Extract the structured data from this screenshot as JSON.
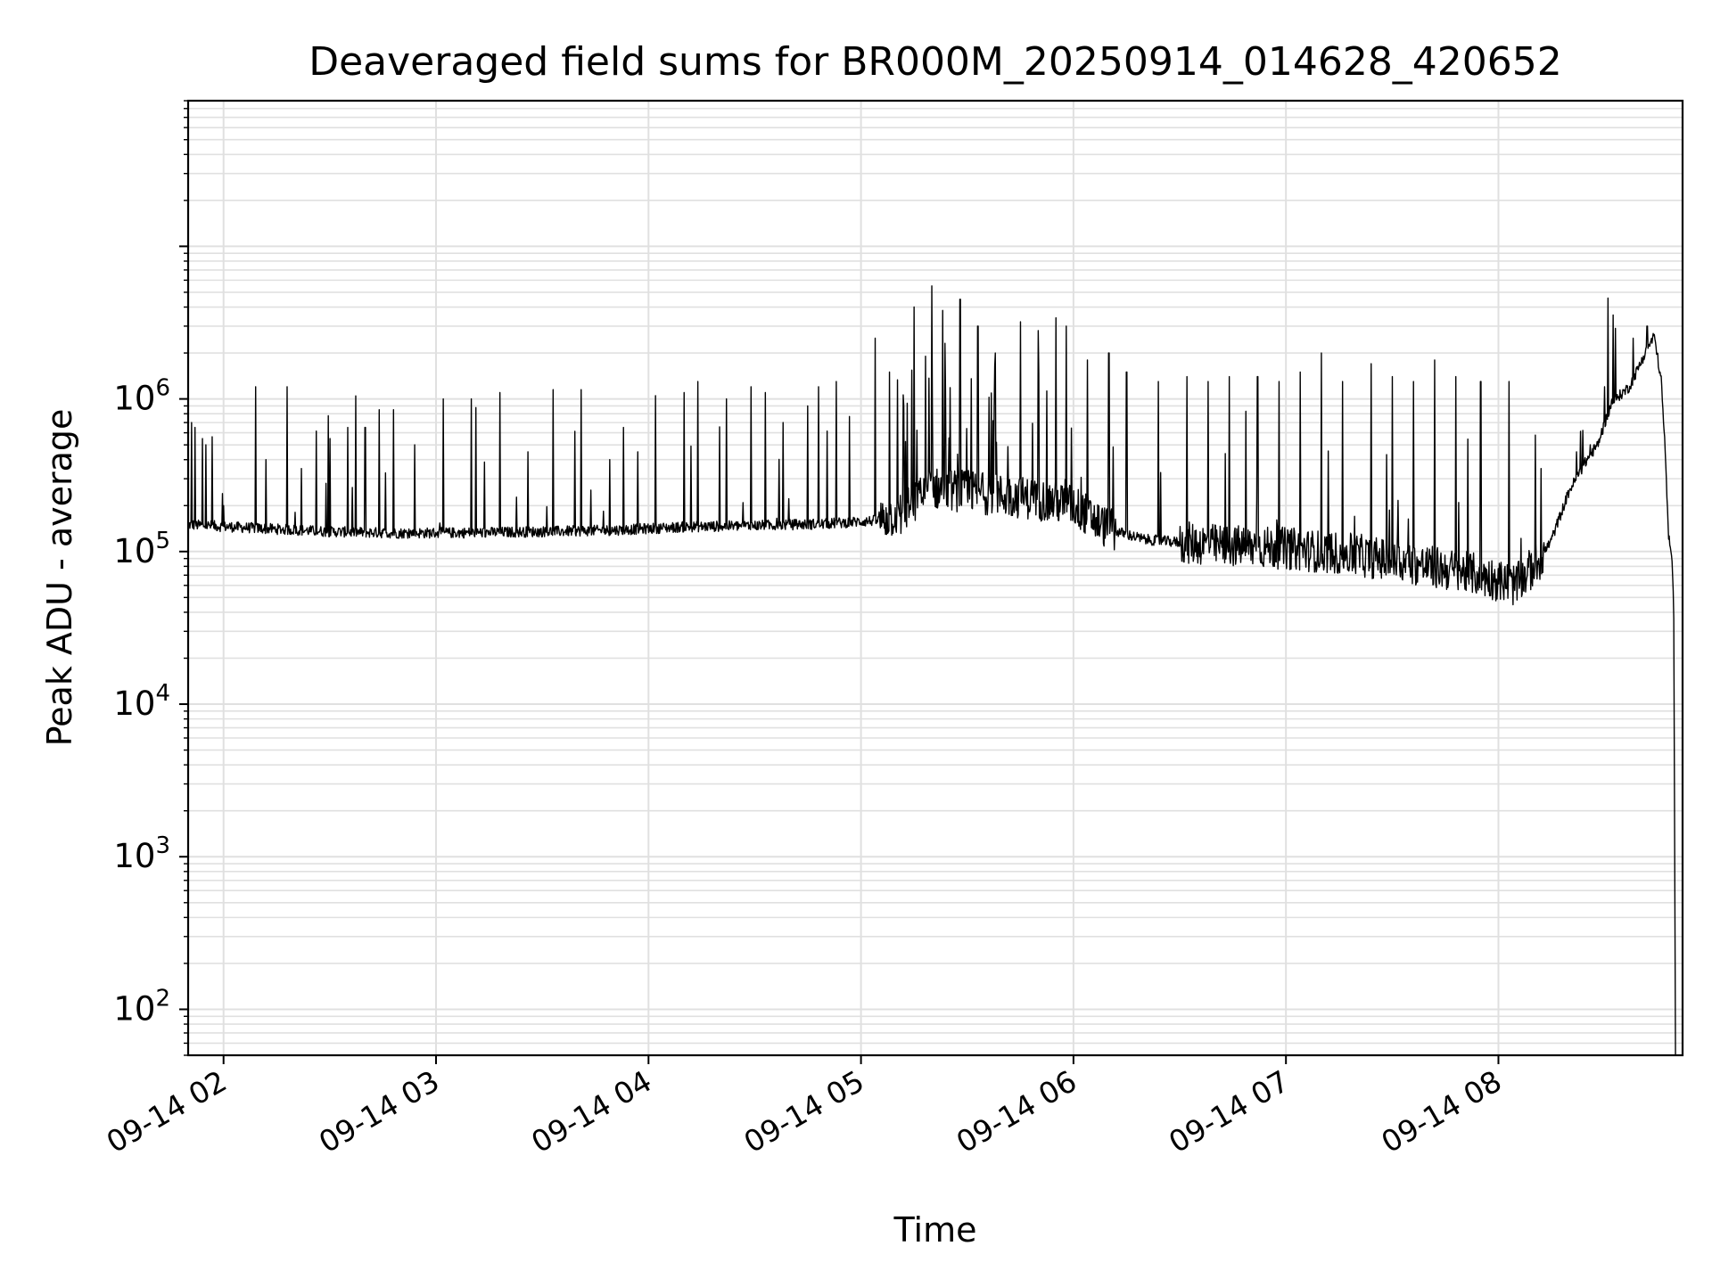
{
  "chart_data": {
    "type": "line",
    "title": "Deaveraged field sums for BR000M_20250914_014628_420652",
    "xlabel": "Time",
    "ylabel": "Peak ADU - average",
    "xlim": [
      "09-14 01:50",
      "09-14 08:52"
    ],
    "ylim": [
      50,
      90000000
    ],
    "yscale": "log",
    "grid": true,
    "legend": "none",
    "x_ticks": [
      {
        "time": "09-14 02:00",
        "label": "09-14 02"
      },
      {
        "time": "09-14 03:00",
        "label": "09-14 03"
      },
      {
        "time": "09-14 04:00",
        "label": "09-14 04"
      },
      {
        "time": "09-14 05:00",
        "label": "09-14 05"
      },
      {
        "time": "09-14 06:00",
        "label": "09-14 06"
      },
      {
        "time": "09-14 07:00",
        "label": "09-14 07"
      },
      {
        "time": "09-14 08:00",
        "label": "09-14 08"
      }
    ],
    "y_ticks": [
      {
        "value": 100,
        "base": "10",
        "exp": "2"
      },
      {
        "value": 1000,
        "base": "10",
        "exp": "3"
      },
      {
        "value": 10000,
        "base": "10",
        "exp": "4"
      },
      {
        "value": 100000,
        "base": "10",
        "exp": "5"
      },
      {
        "value": 1000000,
        "base": "10",
        "exp": "6"
      }
    ],
    "series": [
      {
        "color": "#000000",
        "baseline": [
          [
            "09-14 01:50",
            150000
          ],
          [
            "09-14 02:10",
            142000
          ],
          [
            "09-14 02:30",
            135000
          ],
          [
            "09-14 02:50",
            132000
          ],
          [
            "09-14 03:10",
            133000
          ],
          [
            "09-14 03:30",
            135000
          ],
          [
            "09-14 03:50",
            138000
          ],
          [
            "09-14 04:10",
            145000
          ],
          [
            "09-14 04:30",
            148000
          ],
          [
            "09-14 04:50",
            152000
          ],
          [
            "09-14 05:05",
            160000
          ],
          [
            "09-14 05:12",
            180000
          ],
          [
            "09-14 05:20",
            260000
          ],
          [
            "09-14 05:35",
            240000
          ],
          [
            "09-14 05:50",
            220000
          ],
          [
            "09-14 06:00",
            200000
          ],
          [
            "09-14 06:10",
            140000
          ],
          [
            "09-14 06:20",
            120000
          ],
          [
            "09-14 06:40",
            110000
          ],
          [
            "09-14 07:00",
            105000
          ],
          [
            "09-14 07:20",
            95000
          ],
          [
            "09-14 07:40",
            80000
          ],
          [
            "09-14 07:55",
            70000
          ],
          [
            "09-14 08:05",
            60000
          ],
          [
            "09-14 08:12",
            90000
          ],
          [
            "09-14 08:15",
            120000
          ],
          [
            "09-14 08:20",
            250000
          ],
          [
            "09-14 08:25",
            400000
          ],
          [
            "09-14 08:28",
            500000
          ],
          [
            "09-14 08:32",
            950000
          ],
          [
            "09-14 08:37",
            1200000
          ],
          [
            "09-14 08:41",
            1900000
          ],
          [
            "09-14 08:44",
            2600000
          ],
          [
            "09-14 08:46",
            1300000
          ],
          [
            "09-14 08:47",
            500000
          ],
          [
            "09-14 08:48",
            130000
          ],
          [
            "09-14 08:49",
            90000
          ],
          [
            "09-14 08:49:30",
            45000
          ],
          [
            "09-14 08:50",
            50
          ]
        ],
        "spikes": [
          [
            "09-14 01:51",
            700000
          ],
          [
            "09-14 01:52",
            650000
          ],
          [
            "09-14 01:54",
            550000
          ],
          [
            "09-14 01:55",
            500000
          ],
          [
            "09-14 02:00",
            200000
          ],
          [
            "09-14 02:09",
            1200000
          ],
          [
            "09-14 02:12",
            400000
          ],
          [
            "09-14 02:18",
            1200000
          ],
          [
            "09-14 02:22",
            350000
          ],
          [
            "09-14 02:30",
            550000
          ],
          [
            "09-14 02:35",
            650000
          ],
          [
            "09-14 02:40",
            650000
          ],
          [
            "09-14 02:44",
            850000
          ],
          [
            "09-14 02:48",
            850000
          ],
          [
            "09-14 02:54",
            500000
          ],
          [
            "09-14 03:02",
            1000000
          ],
          [
            "09-14 03:10",
            1000000
          ],
          [
            "09-14 03:18",
            1100000
          ],
          [
            "09-14 03:26",
            450000
          ],
          [
            "09-14 03:33",
            1150000
          ],
          [
            "09-14 03:41",
            1150000
          ],
          [
            "09-14 03:49",
            400000
          ],
          [
            "09-14 03:53",
            650000
          ],
          [
            "09-14 03:57",
            450000
          ],
          [
            "09-14 04:02",
            1050000
          ],
          [
            "09-14 04:10",
            1100000
          ],
          [
            "09-14 04:14",
            1300000
          ],
          [
            "09-14 04:22",
            1000000
          ],
          [
            "09-14 04:29",
            1200000
          ],
          [
            "09-14 04:33",
            1100000
          ],
          [
            "09-14 04:38",
            700000
          ],
          [
            "09-14 04:45",
            900000
          ],
          [
            "09-14 04:48",
            1200000
          ],
          [
            "09-14 04:53",
            1300000
          ],
          [
            "09-14 05:04",
            2500000
          ],
          [
            "09-14 05:08",
            1500000
          ],
          [
            "09-14 05:12",
            900000
          ],
          [
            "09-14 05:15",
            4000000
          ],
          [
            "09-14 05:20",
            5500000
          ],
          [
            "09-14 05:23",
            3800000
          ],
          [
            "09-14 05:28",
            4500000
          ],
          [
            "09-14 05:33",
            3000000
          ],
          [
            "09-14 05:38",
            2000000
          ],
          [
            "09-14 05:45",
            3200000
          ],
          [
            "09-14 05:50",
            2800000
          ],
          [
            "09-14 05:55",
            3400000
          ],
          [
            "09-14 05:58",
            3000000
          ],
          [
            "09-14 06:04",
            1800000
          ],
          [
            "09-14 06:10",
            2000000
          ],
          [
            "09-14 06:15",
            1500000
          ],
          [
            "09-14 06:24",
            1300000
          ],
          [
            "09-14 06:32",
            1400000
          ],
          [
            "09-14 06:38",
            1300000
          ],
          [
            "09-14 06:44",
            1400000
          ],
          [
            "09-14 06:52",
            1400000
          ],
          [
            "09-14 06:58",
            1300000
          ],
          [
            "09-14 07:04",
            1500000
          ],
          [
            "09-14 07:10",
            2000000
          ],
          [
            "09-14 07:16",
            1300000
          ],
          [
            "09-14 07:24",
            1700000
          ],
          [
            "09-14 07:30",
            1400000
          ],
          [
            "09-14 07:36",
            1300000
          ],
          [
            "09-14 07:42",
            1800000
          ],
          [
            "09-14 07:48",
            1400000
          ],
          [
            "09-14 07:55",
            1300000
          ],
          [
            "09-14 08:03",
            1300000
          ],
          [
            "09-14 08:12",
            350000
          ],
          [
            "09-14 08:22",
            450000
          ],
          [
            "09-14 08:26",
            500000
          ],
          [
            "09-14 08:30",
            1200000
          ],
          [
            "09-14 08:33",
            2900000
          ],
          [
            "09-14 08:38",
            2500000
          ],
          [
            "09-14 08:42",
            3000000
          ]
        ]
      }
    ]
  }
}
